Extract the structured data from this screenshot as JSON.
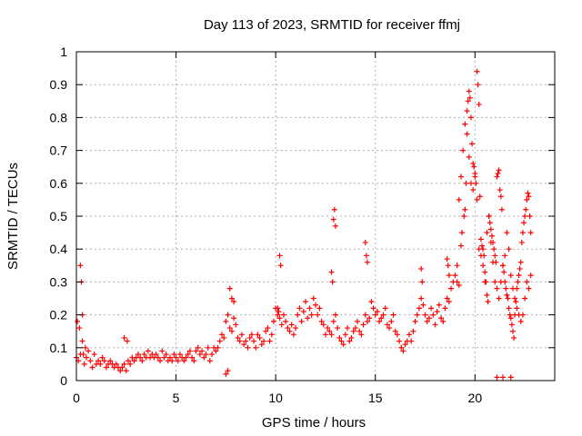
{
  "chart_data": {
    "type": "scatter",
    "title": "Day 113 of 2023, SRMTID for receiver ffmj",
    "xlabel": "GPS time / hours",
    "ylabel": "SRMTID / TECUs",
    "xlim": [
      0,
      24
    ],
    "ylim": [
      0,
      1
    ],
    "xticks": [
      0,
      5,
      10,
      15,
      20
    ],
    "xtick_labels": [
      "0",
      "5",
      "10",
      "15",
      "20"
    ],
    "yticks": [
      0,
      0.1,
      0.2,
      0.3,
      0.4,
      0.5,
      0.6,
      0.7,
      0.8,
      0.9,
      1
    ],
    "ytick_labels": [
      "0",
      "0.1",
      "0.2",
      "0.3",
      "0.4",
      "0.5",
      "0.6",
      "0.7",
      "0.8",
      "0.9",
      "1"
    ],
    "grid": true,
    "marker": "plus",
    "color": "#ff0000",
    "series": [
      {
        "name": "SRMTID",
        "x": [
          0.0,
          0.1,
          0.2,
          0.3,
          0.4,
          0.5,
          0.6,
          0.7,
          0.8,
          0.9,
          1.0,
          1.1,
          1.2,
          1.3,
          1.4,
          1.5,
          1.6,
          1.7,
          1.8,
          1.9,
          2.0,
          2.1,
          2.2,
          2.3,
          2.4,
          2.5,
          2.6,
          2.7,
          2.8,
          2.9,
          3.0,
          3.1,
          3.2,
          3.3,
          3.4,
          3.5,
          3.6,
          3.7,
          3.8,
          3.9,
          4.0,
          4.1,
          4.2,
          4.3,
          4.4,
          4.5,
          4.6,
          4.7,
          4.8,
          4.9,
          5.0,
          5.1,
          5.2,
          5.3,
          5.4,
          5.5,
          5.6,
          5.7,
          5.8,
          5.9,
          6.0,
          6.1,
          6.2,
          6.3,
          6.4,
          6.5,
          6.6,
          6.7,
          6.8,
          6.9,
          7.0,
          7.1,
          7.2,
          7.3,
          7.4,
          7.5,
          7.6,
          7.7,
          7.8,
          7.9,
          8.0,
          8.1,
          8.2,
          8.3,
          8.4,
          8.5,
          8.6,
          8.7,
          8.8,
          8.9,
          9.0,
          9.1,
          9.2,
          9.3,
          9.4,
          9.5,
          9.6,
          9.7,
          9.8,
          9.9,
          10.0,
          10.1,
          10.2,
          10.3,
          10.4,
          10.5,
          10.6,
          10.7,
          10.8,
          10.9,
          11.0,
          11.1,
          11.2,
          11.3,
          11.4,
          11.5,
          11.6,
          11.7,
          11.8,
          11.9,
          12.0,
          12.1,
          12.2,
          12.3,
          12.4,
          12.5,
          12.6,
          12.7,
          12.8,
          12.9,
          13.0,
          13.1,
          13.2,
          13.3,
          13.4,
          13.5,
          13.6,
          13.7,
          13.8,
          13.9,
          14.0,
          14.1,
          14.2,
          14.3,
          14.4,
          14.5,
          14.6,
          14.7,
          14.8,
          14.9,
          15.0,
          15.1,
          15.2,
          15.3,
          15.4,
          15.5,
          15.6,
          15.7,
          15.8,
          15.9,
          16.0,
          16.1,
          16.2,
          16.3,
          16.4,
          16.5,
          16.6,
          16.7,
          16.8,
          16.9,
          17.0,
          17.1,
          17.2,
          17.3,
          17.4,
          17.5,
          17.6,
          17.7,
          17.8,
          17.9,
          18.0,
          18.1,
          18.2,
          18.3,
          18.4,
          18.5,
          18.6,
          18.7,
          18.8,
          18.9,
          19.0,
          19.1,
          19.2,
          19.3,
          19.4,
          19.5,
          19.6,
          19.7,
          19.8,
          19.9,
          20.0,
          20.1,
          20.2,
          20.3,
          20.4,
          20.5,
          20.6,
          20.7,
          20.8,
          20.9,
          21.0,
          21.1,
          21.2,
          21.3,
          21.4,
          21.5,
          21.6,
          21.7,
          21.8,
          21.9,
          22.0,
          22.1,
          22.2,
          22.3,
          22.4,
          22.5,
          22.6,
          22.7,
          22.8,
          0.2,
          0.25,
          0.3,
          0.05,
          0.15,
          0.35,
          0.45,
          2.4,
          2.55,
          7.5,
          7.6,
          7.7,
          7.8,
          7.9,
          10.1,
          10.15,
          10.2,
          10.25,
          12.8,
          12.85,
          12.9,
          12.95,
          13.0,
          14.5,
          14.55,
          14.6,
          17.3,
          17.35,
          18.6,
          18.65,
          18.7,
          19.1,
          19.2,
          19.3,
          19.35,
          19.45,
          19.5,
          19.55,
          19.6,
          19.65,
          19.7,
          19.75,
          19.8,
          19.85,
          19.9,
          19.95,
          20.0,
          20.05,
          20.1,
          20.15,
          20.2,
          20.25,
          20.3,
          20.35,
          20.4,
          20.45,
          20.5,
          20.55,
          20.6,
          20.65,
          20.7,
          20.75,
          20.8,
          20.85,
          20.9,
          20.95,
          21.0,
          21.05,
          21.1,
          21.15,
          21.2,
          21.25,
          21.3,
          21.35,
          21.4,
          21.45,
          21.5,
          21.55,
          21.6,
          21.65,
          21.7,
          21.75,
          21.8,
          21.85,
          21.9,
          21.95,
          22.0,
          22.05,
          22.1,
          22.15,
          22.2,
          22.25,
          22.3,
          22.35,
          22.4,
          22.45,
          22.5,
          22.55,
          22.6,
          22.65,
          22.7,
          22.75,
          22.8,
          21.1,
          21.4,
          21.8
        ],
        "y": [
          0.07,
          0.06,
          0.08,
          0.12,
          0.05,
          0.07,
          0.09,
          0.06,
          0.04,
          0.08,
          0.05,
          0.06,
          0.05,
          0.07,
          0.06,
          0.04,
          0.05,
          0.06,
          0.05,
          0.04,
          0.05,
          0.04,
          0.03,
          0.04,
          0.05,
          0.03,
          0.06,
          0.05,
          0.07,
          0.06,
          0.07,
          0.08,
          0.07,
          0.06,
          0.08,
          0.07,
          0.09,
          0.07,
          0.08,
          0.07,
          0.08,
          0.07,
          0.06,
          0.09,
          0.07,
          0.08,
          0.06,
          0.07,
          0.06,
          0.08,
          0.07,
          0.06,
          0.08,
          0.07,
          0.06,
          0.07,
          0.08,
          0.09,
          0.07,
          0.06,
          0.09,
          0.1,
          0.08,
          0.09,
          0.07,
          0.08,
          0.1,
          0.06,
          0.08,
          0.1,
          0.09,
          0.1,
          0.12,
          0.14,
          0.13,
          0.18,
          0.2,
          0.16,
          0.15,
          0.19,
          0.17,
          0.13,
          0.12,
          0.14,
          0.11,
          0.12,
          0.1,
          0.13,
          0.14,
          0.12,
          0.1,
          0.14,
          0.13,
          0.11,
          0.12,
          0.15,
          0.16,
          0.12,
          0.14,
          0.18,
          0.22,
          0.2,
          0.19,
          0.17,
          0.2,
          0.18,
          0.16,
          0.15,
          0.17,
          0.14,
          0.16,
          0.2,
          0.22,
          0.18,
          0.21,
          0.24,
          0.19,
          0.22,
          0.2,
          0.25,
          0.23,
          0.2,
          0.22,
          0.18,
          0.17,
          0.14,
          0.16,
          0.15,
          0.14,
          0.18,
          0.2,
          0.16,
          0.13,
          0.12,
          0.11,
          0.14,
          0.16,
          0.12,
          0.13,
          0.15,
          0.16,
          0.18,
          0.15,
          0.14,
          0.17,
          0.2,
          0.18,
          0.19,
          0.24,
          0.22,
          0.2,
          0.21,
          0.18,
          0.19,
          0.2,
          0.22,
          0.17,
          0.16,
          0.18,
          0.2,
          0.15,
          0.14,
          0.12,
          0.1,
          0.09,
          0.11,
          0.12,
          0.14,
          0.12,
          0.15,
          0.18,
          0.2,
          0.22,
          0.25,
          0.23,
          0.2,
          0.18,
          0.19,
          0.22,
          0.2,
          0.17,
          0.21,
          0.23,
          0.19,
          0.18,
          0.22,
          0.25,
          0.24,
          0.28,
          0.3,
          0.32,
          0.35,
          0.55,
          0.62,
          0.7,
          0.78,
          0.75,
          0.68,
          0.6,
          0.58,
          0.62,
          0.55,
          0.4,
          0.38,
          0.35,
          0.3,
          0.45,
          0.5,
          0.42,
          0.36,
          0.3,
          0.28,
          0.25,
          0.3,
          0.35,
          0.38,
          0.45,
          0.4,
          0.32,
          0.28,
          0.25,
          0.22,
          0.2,
          0.18,
          0.2,
          0.25,
          0.3,
          0.28,
          0.32,
          0.35,
          0.3,
          0.2,
          0.18,
          0.16,
          0.08,
          0.1,
          0.13,
          0.12,
          0.02,
          0.03,
          0.28,
          0.25,
          0.24,
          0.22,
          0.21,
          0.38,
          0.35,
          0.33,
          0.3,
          0.49,
          0.52,
          0.47,
          0.42,
          0.38,
          0.36,
          0.34,
          0.3,
          0.37,
          0.35,
          0.32,
          0.3,
          0.29,
          0.41,
          0.45,
          0.5,
          0.52,
          0.6,
          0.82,
          0.85,
          0.88,
          0.86,
          0.8,
          0.72,
          0.66,
          0.65,
          0.63,
          0.6,
          0.94,
          0.9,
          0.84,
          0.56,
          0.43,
          0.41,
          0.4,
          0.38,
          0.33,
          0.3,
          0.26,
          0.24,
          0.5,
          0.48,
          0.46,
          0.44,
          0.42,
          0.4,
          0.38,
          0.36,
          0.62,
          0.63,
          0.64,
          0.58,
          0.56,
          0.52,
          0.35,
          0.33,
          0.3,
          0.28,
          0.26,
          0.25,
          0.22,
          0.2,
          0.19,
          0.17,
          0.15,
          0.13,
          0.2,
          0.24,
          0.28,
          0.3,
          0.32,
          0.34,
          0.36,
          0.42,
          0.45,
          0.48,
          0.5,
          0.52,
          0.55,
          0.57,
          0.56,
          0.5,
          0.45,
          0.01,
          0.01,
          0.01
        ]
      }
    ]
  }
}
